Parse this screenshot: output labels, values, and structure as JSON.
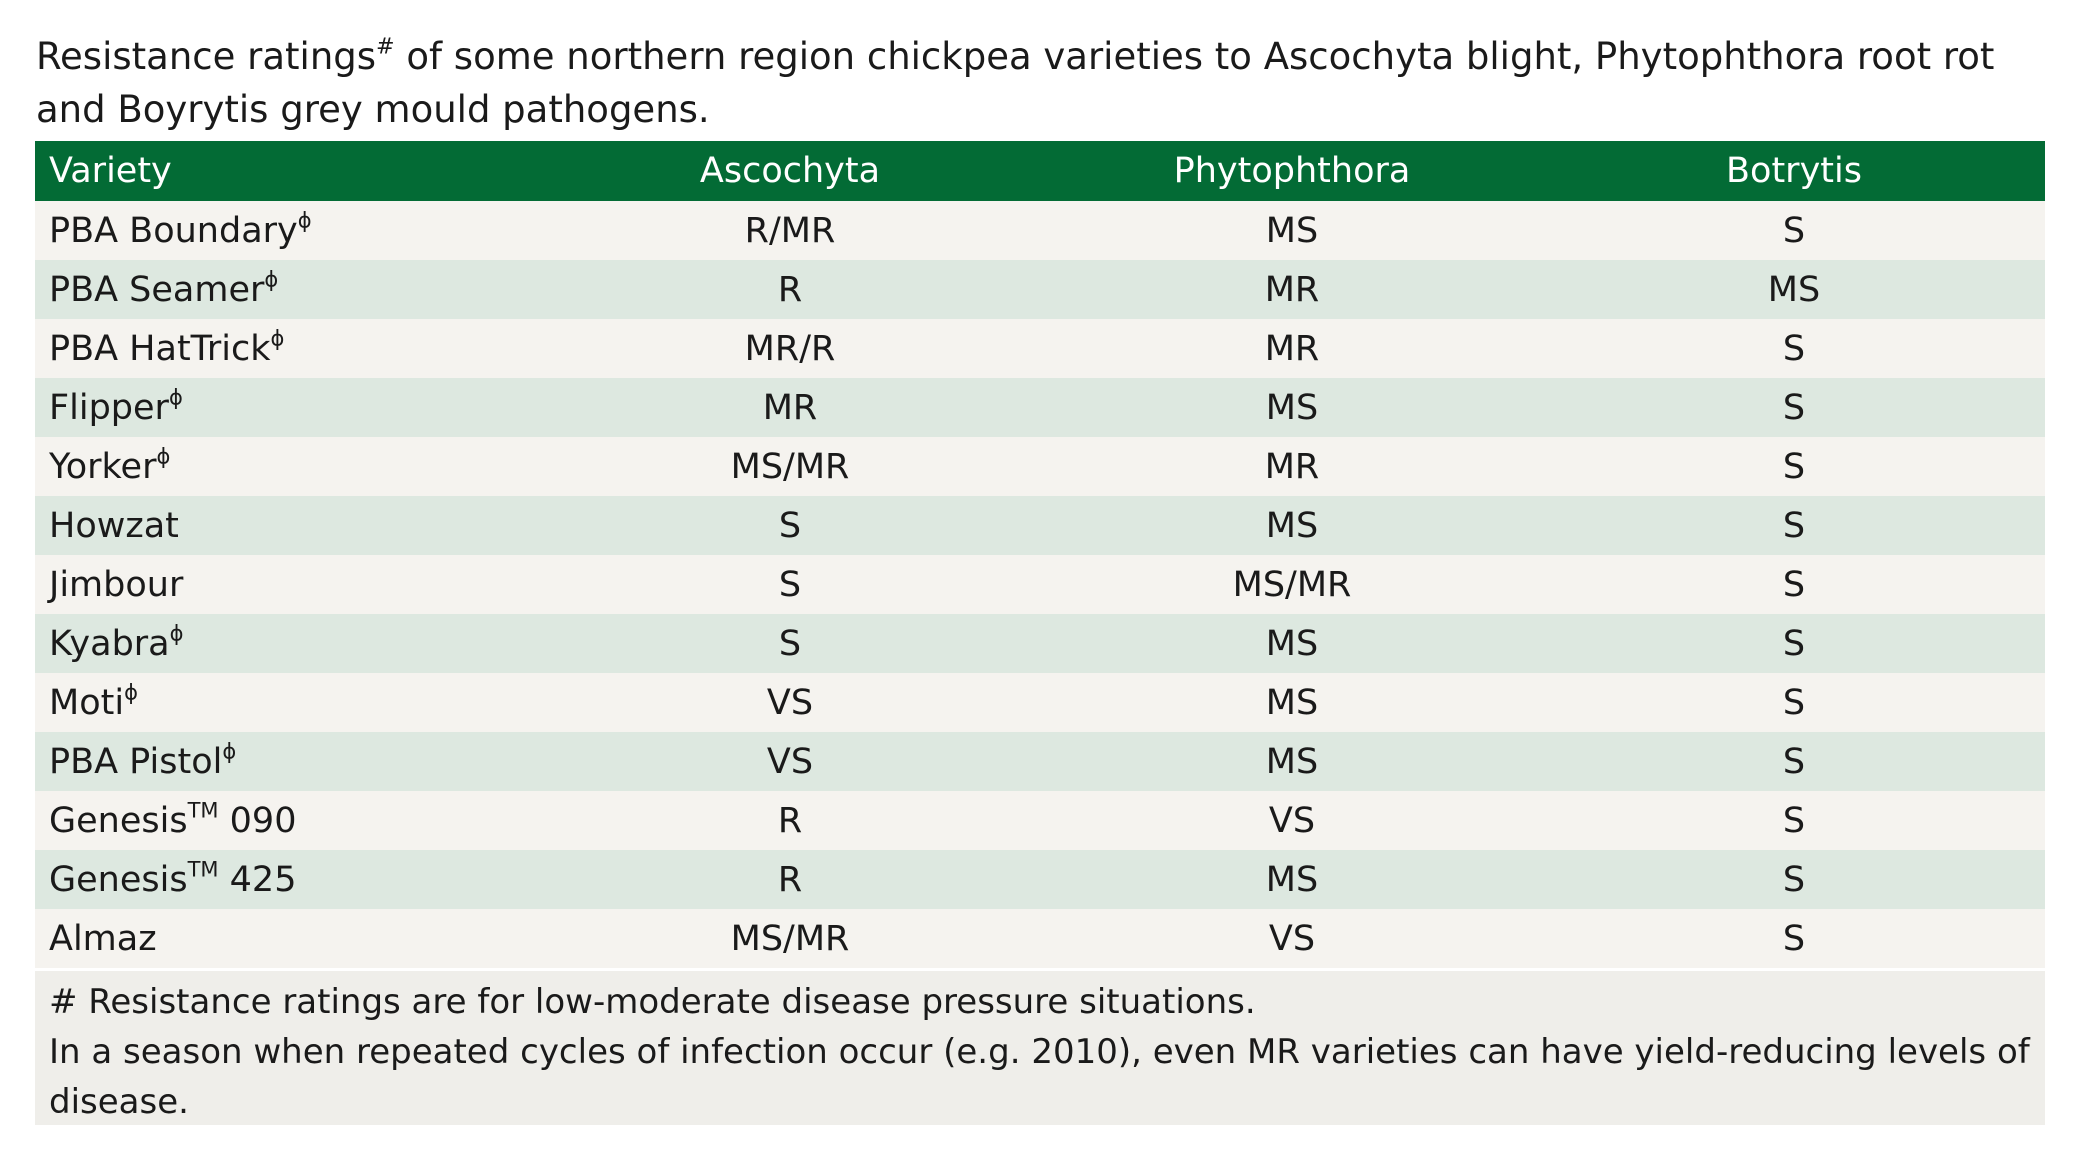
{
  "title": {
    "text": "Resistance ratings",
    "mark": "#",
    "rest": " of some northern region chickpea varieties to Ascochyta blight, Phytophthora root rot and Boyrytis grey mould pathogens."
  },
  "table": {
    "header": [
      "Variety",
      "Ascochyta",
      "Phytophthora",
      "Botrytis"
    ],
    "rows": [
      [
        {
          "name": "PBA Boundary",
          "mark": "ɸ"
        },
        "R/MR",
        "MS",
        "S"
      ],
      [
        {
          "name": "PBA Seamer",
          "mark": "ɸ"
        },
        "R",
        "MR",
        "MS"
      ],
      [
        {
          "name": "PBA HatTrick",
          "mark": "ɸ"
        },
        "MR/R",
        "MR",
        "S"
      ],
      [
        {
          "name": "Flipper",
          "mark": "ɸ"
        },
        "MR",
        "MS",
        "S"
      ],
      [
        {
          "name": "Yorker",
          "mark": "ɸ"
        },
        "MS/MR",
        "MR",
        "S"
      ],
      [
        {
          "name": "Howzat"
        },
        "S",
        "MS",
        "S"
      ],
      [
        {
          "name": "Jimbour"
        },
        "S",
        "MS/MR",
        "S"
      ],
      [
        {
          "name": "Kyabra",
          "mark": "ɸ"
        },
        "S",
        "MS",
        "S"
      ],
      [
        {
          "name": "Moti",
          "mark": "ɸ"
        },
        "VS",
        "MS",
        "S"
      ],
      [
        {
          "name": "PBA Pistol",
          "mark": "ɸ"
        },
        "VS",
        "MS",
        "S"
      ],
      [
        {
          "name": "Genesis",
          "mark": "TM",
          "suffix": " 090"
        },
        "R",
        "VS",
        "S"
      ],
      [
        {
          "name": "Genesis",
          "mark": "TM",
          "suffix": " 425"
        },
        "R",
        "MS",
        "S"
      ],
      [
        {
          "name": "Almaz"
        },
        "MS/MR",
        "VS",
        "S"
      ]
    ],
    "footnotes": [
      "# Resistance ratings are for low-moderate disease pressure situations.",
      "In a season when repeated cycles of infection occur (e.g. 2010), even MR varieties can have yield-reducing levels of disease."
    ]
  }
}
